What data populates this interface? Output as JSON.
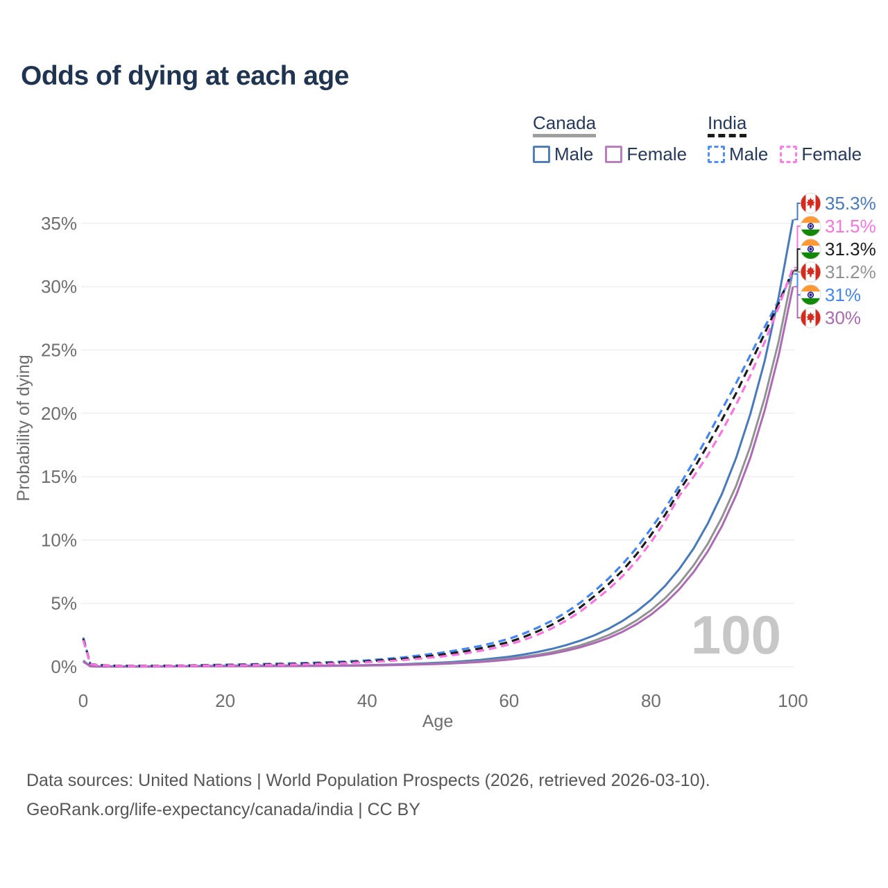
{
  "page": {
    "title": "Odds of dying at each age"
  },
  "legend": {
    "groups": [
      {
        "label": "Canada",
        "line_style": "solid",
        "underline_color": "#9e9e9e",
        "items": [
          {
            "label": "Male",
            "color": "#517fba"
          },
          {
            "label": "Female",
            "color": "#bd7cbe"
          }
        ]
      },
      {
        "label": "India",
        "line_style": "dashed",
        "underline_color": "#1a1a1a",
        "items": [
          {
            "label": "Male",
            "color": "#4d8ef7"
          },
          {
            "label": "Female",
            "color": "#ff7ce6"
          }
        ]
      }
    ]
  },
  "axes": {
    "y_title": "Probability of dying",
    "x_title": "Age",
    "y_ticks": [
      "35%",
      "30%",
      "25%",
      "20%",
      "15%",
      "10%",
      "5%",
      "0%"
    ],
    "x_ticks": [
      "0",
      "20",
      "40",
      "60",
      "80",
      "100"
    ]
  },
  "watermark_age": "100",
  "footer": {
    "line1": "Data sources: United Nations | World Population Prospects (2026, retrieved 2026-03-10).",
    "line2": "GeoRank.org/life-expectancy/canada/india | CC BY"
  },
  "chart_data": {
    "type": "line",
    "title": "Odds of dying at each age",
    "xlabel": "Age",
    "ylabel": "Probability of dying",
    "unit": "percent",
    "x_range": [
      0,
      100
    ],
    "y_range_percent": [
      0,
      36.5
    ],
    "y_tick_values": [
      35,
      30,
      25,
      20,
      15,
      10,
      5,
      0
    ],
    "x_tick_values": [
      0,
      20,
      40,
      60,
      80,
      100
    ],
    "grid": "horizontal",
    "legend_position": "top-right",
    "ages": [
      0,
      1,
      2,
      4,
      6,
      8,
      10,
      15,
      20,
      25,
      30,
      35,
      40,
      45,
      50,
      52,
      54,
      56,
      58,
      60,
      62,
      64,
      66,
      68,
      70,
      72,
      74,
      76,
      78,
      80,
      82,
      84,
      86,
      88,
      90,
      92,
      94,
      96,
      98,
      100
    ],
    "series": [
      {
        "id": "canada-male",
        "name": "Canada Male",
        "country": "Canada",
        "sex": "male",
        "flag": "canada",
        "color": "#4679bd",
        "dashed": false,
        "end_label": "35.3%",
        "values": [
          0.48,
          0.03,
          0.02,
          0.012,
          0.01,
          0.01,
          0.012,
          0.04,
          0.075,
          0.08,
          0.085,
          0.09,
          0.12,
          0.19,
          0.31,
          0.37,
          0.45,
          0.54,
          0.66,
          0.79,
          0.96,
          1.16,
          1.4,
          1.69,
          2.05,
          2.47,
          2.99,
          3.62,
          4.37,
          5.28,
          6.39,
          7.72,
          9.33,
          11.3,
          13.65,
          16.5,
          19.95,
          24.1,
          29.2,
          35.3
        ]
      },
      {
        "id": "canada-total",
        "name": "Canada Total",
        "country": "Canada",
        "sex": "total",
        "flag": "canada",
        "color": "#929292",
        "dashed": false,
        "end_label": "31.2%",
        "values": [
          0.44,
          0.028,
          0.018,
          0.011,
          0.009,
          0.009,
          0.011,
          0.032,
          0.055,
          0.06,
          0.065,
          0.075,
          0.105,
          0.16,
          0.25,
          0.3,
          0.36,
          0.44,
          0.53,
          0.64,
          0.77,
          0.94,
          1.14,
          1.39,
          1.68,
          2.05,
          2.49,
          3.02,
          3.67,
          4.46,
          5.42,
          6.58,
          8.0,
          9.7,
          11.8,
          14.3,
          17.4,
          21.2,
          25.7,
          31.2
        ]
      },
      {
        "id": "canada-female",
        "name": "Canada Female",
        "country": "Canada",
        "sex": "female",
        "flag": "canada",
        "color": "#ad68b6",
        "dashed": false,
        "end_label": "30%",
        "values": [
          0.4,
          0.025,
          0.016,
          0.01,
          0.008,
          0.008,
          0.01,
          0.025,
          0.035,
          0.04,
          0.05,
          0.065,
          0.095,
          0.14,
          0.215,
          0.26,
          0.315,
          0.38,
          0.46,
          0.56,
          0.69,
          0.84,
          1.02,
          1.25,
          1.52,
          1.86,
          2.26,
          2.76,
          3.37,
          4.11,
          5.02,
          6.12,
          7.47,
          9.1,
          11.1,
          13.55,
          16.5,
          20.2,
          24.6,
          30.0
        ]
      },
      {
        "id": "india-male",
        "name": "India Male",
        "country": "India",
        "sex": "male",
        "flag": "india",
        "color": "#4285f4",
        "dashed": true,
        "end_label": "31%",
        "values": [
          2.3,
          0.22,
          0.14,
          0.09,
          0.07,
          0.068,
          0.07,
          0.1,
          0.16,
          0.21,
          0.27,
          0.36,
          0.5,
          0.73,
          1.07,
          1.24,
          1.43,
          1.65,
          1.9,
          2.2,
          2.6,
          3.07,
          3.62,
          4.27,
          5.04,
          5.95,
          6.95,
          8.1,
          9.4,
          10.9,
          12.5,
          14.3,
          16.2,
          18.2,
          20.3,
          22.4,
          24.6,
          26.8,
          28.9,
          31.0
        ]
      },
      {
        "id": "india-total",
        "name": "India Total",
        "country": "India",
        "sex": "total",
        "flag": "india",
        "color": "#1c1c1c",
        "dashed": true,
        "end_label": "31.3%",
        "values": [
          2.2,
          0.21,
          0.13,
          0.082,
          0.062,
          0.059,
          0.06,
          0.085,
          0.13,
          0.17,
          0.22,
          0.3,
          0.42,
          0.62,
          0.92,
          1.07,
          1.24,
          1.45,
          1.68,
          1.95,
          2.33,
          2.78,
          3.3,
          3.93,
          4.67,
          5.56,
          6.5,
          7.6,
          8.9,
          10.4,
          12.0,
          13.9,
          15.6,
          17.5,
          19.5,
          21.6,
          23.9,
          26.3,
          28.7,
          31.3
        ]
      },
      {
        "id": "india-female",
        "name": "India Female",
        "country": "India",
        "sex": "female",
        "flag": "india",
        "color": "#fb73e0",
        "dashed": true,
        "end_label": "31.5%",
        "values": [
          2.1,
          0.2,
          0.12,
          0.075,
          0.055,
          0.05,
          0.05,
          0.07,
          0.1,
          0.13,
          0.17,
          0.24,
          0.35,
          0.52,
          0.77,
          0.91,
          1.07,
          1.26,
          1.48,
          1.75,
          2.1,
          2.52,
          3.02,
          3.62,
          4.34,
          5.2,
          6.1,
          7.15,
          8.38,
          9.83,
          11.5,
          13.5,
          15.0,
          16.7,
          18.6,
          20.7,
          23.0,
          25.6,
          28.4,
          31.5
        ]
      }
    ]
  }
}
